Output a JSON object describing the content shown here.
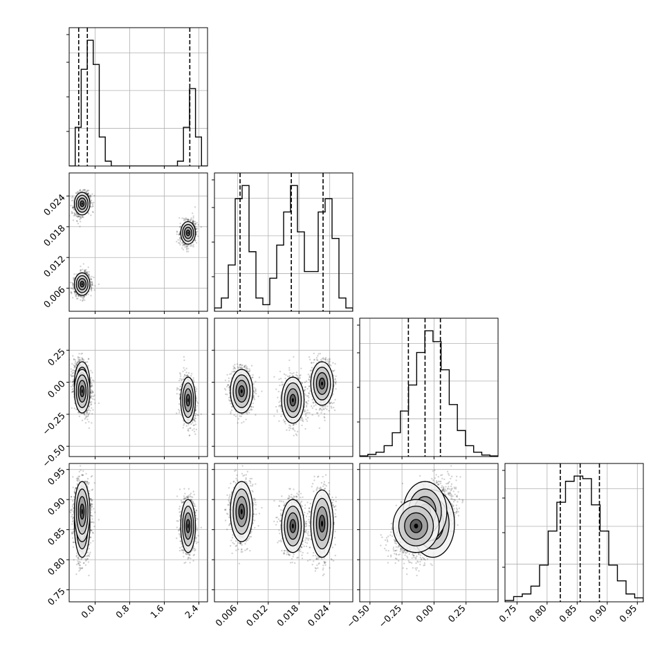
{
  "chart_data": {
    "type": "corner",
    "parameters": [
      {
        "range": [
          -0.6,
          2.6
        ],
        "ticks": [
          0.0,
          0.8,
          1.6,
          2.4
        ],
        "tick_labels": [
          "0.0",
          "0.8",
          "1.6",
          "2.4"
        ],
        "quantiles": [
          -0.38,
          -0.18,
          2.19
        ]
      },
      {
        "range": [
          0.0015,
          0.0285
        ],
        "ticks": [
          0.006,
          0.012,
          0.018,
          0.024
        ],
        "tick_labels": [
          "0.006",
          "0.012",
          "0.018",
          "0.024"
        ],
        "quantiles": [
          0.0065,
          0.0165,
          0.0227
        ]
      },
      {
        "range": [
          -0.58,
          0.5
        ],
        "ticks": [
          -0.5,
          -0.25,
          0.0,
          0.25
        ],
        "tick_labels": [
          "−0.50",
          "−0.25",
          "0.00",
          "0.25"
        ],
        "quantiles": [
          -0.2,
          -0.07,
          0.05
        ]
      },
      {
        "range": [
          0.73,
          0.96
        ],
        "ticks": [
          0.75,
          0.8,
          0.85,
          0.9,
          0.95
        ],
        "tick_labels": [
          "0.75",
          "0.80",
          "0.85",
          "0.90",
          "0.95"
        ],
        "quantiles": [
          0.822,
          0.855,
          0.887
        ]
      }
    ],
    "histograms": [
      [
        0,
        8,
        20,
        26,
        21,
        6,
        1,
        0,
        0,
        0,
        0,
        0,
        0,
        0,
        0,
        0,
        0,
        0,
        1,
        8,
        16,
        6,
        0
      ],
      [
        0.5,
        2,
        7,
        17,
        19,
        9,
        2,
        1,
        5,
        10,
        15,
        19,
        12,
        6,
        6,
        15,
        17,
        11,
        2,
        0.5
      ],
      [
        0.3,
        1,
        2,
        5,
        11,
        21,
        33,
        48,
        58,
        53,
        40,
        24,
        12,
        5,
        2,
        0.7,
        0.3
      ],
      [
        0.5,
        2,
        3,
        6,
        14,
        27,
        38,
        46,
        48,
        47,
        37,
        27,
        14,
        8,
        3,
        1.5
      ]
    ],
    "clusters": [
      {
        "n": 1000,
        "mean": [
          -0.3,
          0.0225,
          -0.01,
          0.86
        ],
        "sd": [
          0.09,
          0.0011,
          0.085,
          0.028
        ]
      },
      {
        "n": 1000,
        "mean": [
          -0.3,
          0.0068,
          -0.07,
          0.88
        ],
        "sd": [
          0.09,
          0.0011,
          0.085,
          0.025
        ]
      },
      {
        "n": 1000,
        "mean": [
          2.15,
          0.0168,
          -0.14,
          0.856
        ],
        "sd": [
          0.085,
          0.0011,
          0.09,
          0.022
        ]
      }
    ],
    "title": "",
    "xlabel": "",
    "ylabel": "",
    "grid": true,
    "quantile_line_style": "dashed"
  }
}
